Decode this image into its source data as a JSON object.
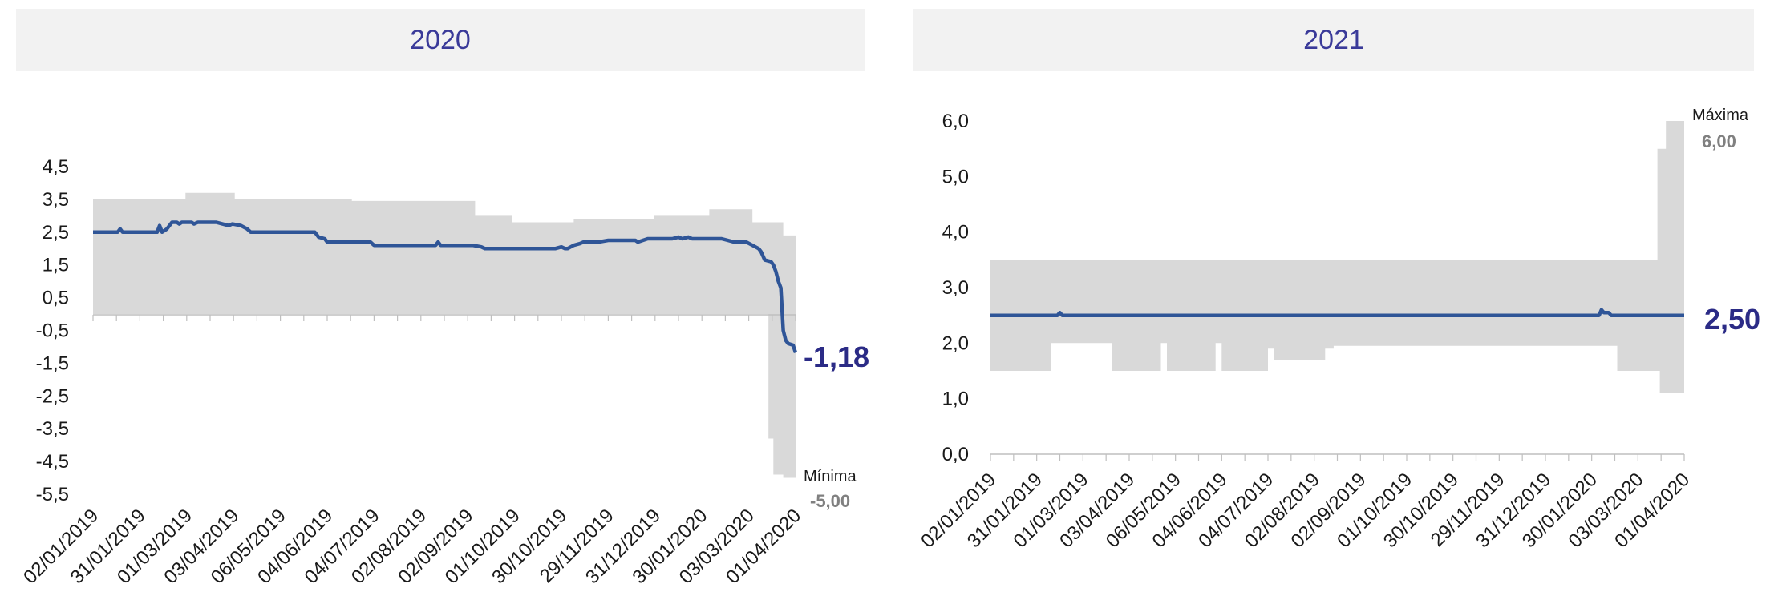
{
  "colors": {
    "line": "#2f5597",
    "band": "#d9d9d9",
    "header_bg": "#f2f2f2",
    "title": "#3a3a99",
    "last_value": "#2b2b86",
    "annotation_value": "#808080"
  },
  "chart_data": [
    {
      "type": "line",
      "title": "2020",
      "x_tick_labels": [
        "02/01/2019",
        "31/01/2019",
        "01/03/2019",
        "03/04/2019",
        "06/05/2019",
        "04/06/2019",
        "04/07/2019",
        "02/08/2019",
        "02/09/2019",
        "01/10/2019",
        "30/10/2019",
        "29/11/2019",
        "31/12/2019",
        "30/01/2020",
        "03/03/2020",
        "01/04/2020"
      ],
      "y_tick_labels": [
        "4,5",
        "3,5",
        "2,5",
        "1,5",
        "0,5",
        "-0,5",
        "-1,5",
        "-2,5",
        "-3,5",
        "-4,5",
        "-5,5"
      ],
      "ylim": [
        -5.5,
        4.5
      ],
      "grid": false,
      "series": [
        {
          "role": "median",
          "values": [
            [
              0,
              2.5
            ],
            [
              20,
              2.5
            ],
            [
              22,
              2.6
            ],
            [
              24,
              2.5
            ],
            [
              52,
              2.5
            ],
            [
              54,
              2.7
            ],
            [
              56,
              2.5
            ],
            [
              60,
              2.6
            ],
            [
              64,
              2.8
            ],
            [
              68,
              2.8
            ],
            [
              70,
              2.75
            ],
            [
              72,
              2.8
            ],
            [
              80,
              2.8
            ],
            [
              82,
              2.75
            ],
            [
              85,
              2.8
            ],
            [
              100,
              2.8
            ],
            [
              105,
              2.75
            ],
            [
              110,
              2.7
            ],
            [
              113,
              2.75
            ],
            [
              120,
              2.7
            ],
            [
              125,
              2.6
            ],
            [
              128,
              2.5
            ],
            [
              180,
              2.5
            ],
            [
              183,
              2.35
            ],
            [
              188,
              2.3
            ],
            [
              190,
              2.2
            ],
            [
              225,
              2.2
            ],
            [
              228,
              2.1
            ],
            [
              278,
              2.1
            ],
            [
              280,
              2.2
            ],
            [
              282,
              2.1
            ],
            [
              308,
              2.1
            ],
            [
              315,
              2.05
            ],
            [
              318,
              2.0
            ],
            [
              375,
              2.0
            ],
            [
              380,
              2.05
            ],
            [
              383,
              2.0
            ],
            [
              385,
              2.0
            ],
            [
              390,
              2.1
            ],
            [
              395,
              2.15
            ],
            [
              398,
              2.2
            ],
            [
              410,
              2.2
            ],
            [
              418,
              2.25
            ],
            [
              430,
              2.25
            ],
            [
              440,
              2.25
            ],
            [
              442,
              2.2
            ],
            [
              450,
              2.3
            ],
            [
              470,
              2.3
            ],
            [
              475,
              2.35
            ],
            [
              478,
              2.3
            ],
            [
              483,
              2.35
            ],
            [
              486,
              2.3
            ],
            [
              510,
              2.3
            ],
            [
              515,
              2.25
            ],
            [
              520,
              2.2
            ],
            [
              530,
              2.2
            ],
            [
              535,
              2.1
            ],
            [
              540,
              2.0
            ],
            [
              542,
              1.9
            ],
            [
              545,
              1.65
            ],
            [
              550,
              1.6
            ],
            [
              552,
              1.5
            ],
            [
              554,
              1.3
            ],
            [
              556,
              1.0
            ],
            [
              558,
              0.8
            ],
            [
              560,
              -0.5
            ],
            [
              562,
              -0.8
            ],
            [
              564,
              -0.9
            ],
            [
              568,
              -0.95
            ],
            [
              570,
              -1.18
            ]
          ]
        },
        {
          "role": "max",
          "values": [
            [
              0,
              3.5
            ],
            [
              75,
              3.5
            ],
            [
              75,
              3.7
            ],
            [
              115,
              3.7
            ],
            [
              115,
              3.5
            ],
            [
              210,
              3.5
            ],
            [
              210,
              3.45
            ],
            [
              310,
              3.45
            ],
            [
              310,
              3.0
            ],
            [
              340,
              3.0
            ],
            [
              340,
              2.8
            ],
            [
              390,
              2.8
            ],
            [
              390,
              2.9
            ],
            [
              455,
              2.9
            ],
            [
              455,
              3.0
            ],
            [
              500,
              3.0
            ],
            [
              500,
              3.2
            ],
            [
              535,
              3.2
            ],
            [
              535,
              2.8
            ],
            [
              560,
              2.8
            ],
            [
              560,
              2.4
            ],
            [
              570,
              2.4
            ]
          ]
        },
        {
          "role": "min",
          "values": [
            [
              0,
              0.0
            ],
            [
              548,
              0.0
            ],
            [
              548,
              -3.8
            ],
            [
              552,
              -3.8
            ],
            [
              552,
              -4.9
            ],
            [
              560,
              -4.9
            ],
            [
              560,
              -5.0
            ],
            [
              570,
              -5.0
            ]
          ]
        }
      ],
      "last_value_label": "-1,18",
      "min_label": "Mínima",
      "min_value_label": "-5,00"
    },
    {
      "type": "line",
      "title": "2021",
      "x_tick_labels": [
        "02/01/2019",
        "31/01/2019",
        "01/03/2019",
        "03/04/2019",
        "06/05/2019",
        "04/06/2019",
        "04/07/2019",
        "02/08/2019",
        "02/09/2019",
        "01/10/2019",
        "30/10/2019",
        "29/11/2019",
        "31/12/2019",
        "30/01/2020",
        "03/03/2020",
        "01/04/2020"
      ],
      "y_tick_labels": [
        "6,0",
        "5,0",
        "4,0",
        "3,0",
        "2,0",
        "1,0",
        "0,0"
      ],
      "ylim": [
        0,
        6
      ],
      "grid": false,
      "series": [
        {
          "role": "median",
          "values": [
            [
              0,
              2.5
            ],
            [
              55,
              2.5
            ],
            [
              57,
              2.55
            ],
            [
              59,
              2.5
            ],
            [
              500,
              2.5
            ],
            [
              502,
              2.6
            ],
            [
              504,
              2.55
            ],
            [
              508,
              2.55
            ],
            [
              510,
              2.5
            ],
            [
              570,
              2.5
            ]
          ]
        },
        {
          "role": "max",
          "values": [
            [
              0,
              3.5
            ],
            [
              548,
              3.5
            ],
            [
              548,
              5.5
            ],
            [
              555,
              5.5
            ],
            [
              555,
              6.0
            ],
            [
              570,
              6.0
            ]
          ]
        },
        {
          "role": "min",
          "values": [
            [
              0,
              1.5
            ],
            [
              50,
              1.5
            ],
            [
              50,
              2.0
            ],
            [
              100,
              2.0
            ],
            [
              100,
              1.5
            ],
            [
              140,
              1.5
            ],
            [
              140,
              2.0
            ],
            [
              145,
              2.0
            ],
            [
              145,
              1.5
            ],
            [
              185,
              1.5
            ],
            [
              185,
              2.0
            ],
            [
              190,
              2.0
            ],
            [
              190,
              1.5
            ],
            [
              228,
              1.5
            ],
            [
              228,
              1.9
            ],
            [
              233,
              1.9
            ],
            [
              233,
              1.7
            ],
            [
              275,
              1.7
            ],
            [
              275,
              1.9
            ],
            [
              282,
              1.9
            ],
            [
              282,
              1.95
            ],
            [
              515,
              1.95
            ],
            [
              515,
              1.5
            ],
            [
              550,
              1.5
            ],
            [
              550,
              1.1
            ],
            [
              570,
              1.1
            ]
          ]
        }
      ],
      "last_value_label": "2,50",
      "max_label": "Máxima",
      "max_value_label": "6,00"
    }
  ]
}
